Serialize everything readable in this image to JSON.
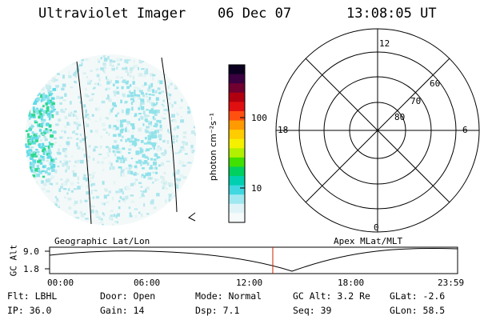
{
  "header": {
    "instrument": "Ultraviolet Imager",
    "date": "06 Dec 07",
    "time": "13:08:05 UT"
  },
  "colorbar": {
    "unit_label": "photon cm⁻²s⁻¹",
    "ticks": [
      "100",
      "10"
    ]
  },
  "polar_plot": {
    "mlt_labels": [
      "12",
      "18",
      "6",
      "0"
    ],
    "lat_labels": [
      "60",
      "70",
      "80"
    ]
  },
  "timeline": {
    "left_title": "Geographic Lat/Lon",
    "right_title": "Apex MLat/MLT",
    "ylabel": "GC Alt",
    "y_ticks": [
      "9.0",
      "1.8"
    ],
    "x_ticks": [
      "00:00",
      "06:00",
      "12:00",
      "18:00",
      "23:59"
    ],
    "current_time_fraction": 0.547,
    "marker_color": "#cc2200"
  },
  "footer": {
    "filter": "Flt: LBHL",
    "ip": "IP: 36.0",
    "door": "Door: Open",
    "gain": "Gain: 14",
    "mode": "Mode: Normal",
    "dsp": "Dsp:    7.1",
    "gc_alt": "GC Alt: 3.2 Re",
    "seq": "Seq: 39",
    "glat": "GLat:  -2.6",
    "glon": "GLon:  58.5"
  }
}
